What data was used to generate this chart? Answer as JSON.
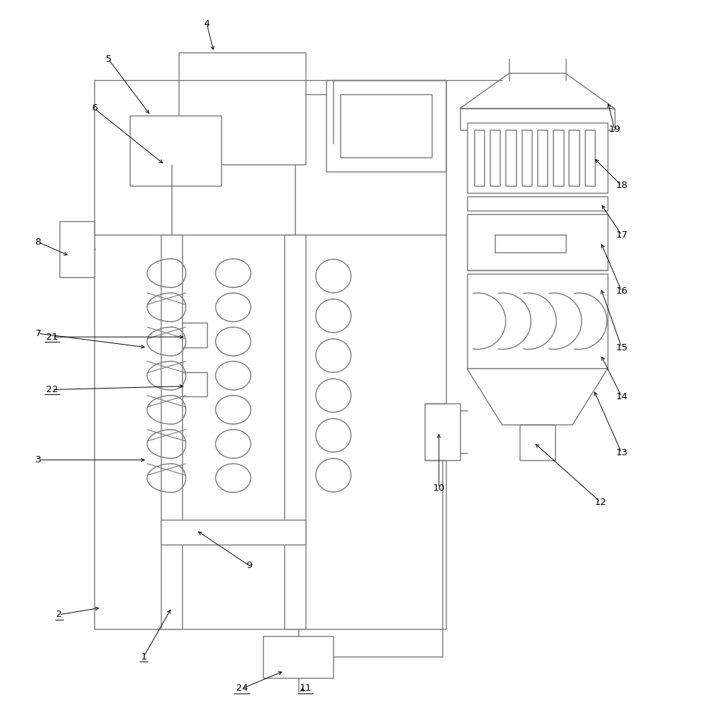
{
  "lc": "#777777",
  "lw": 1.0,
  "fw": 10.0,
  "fh": 9.9
}
